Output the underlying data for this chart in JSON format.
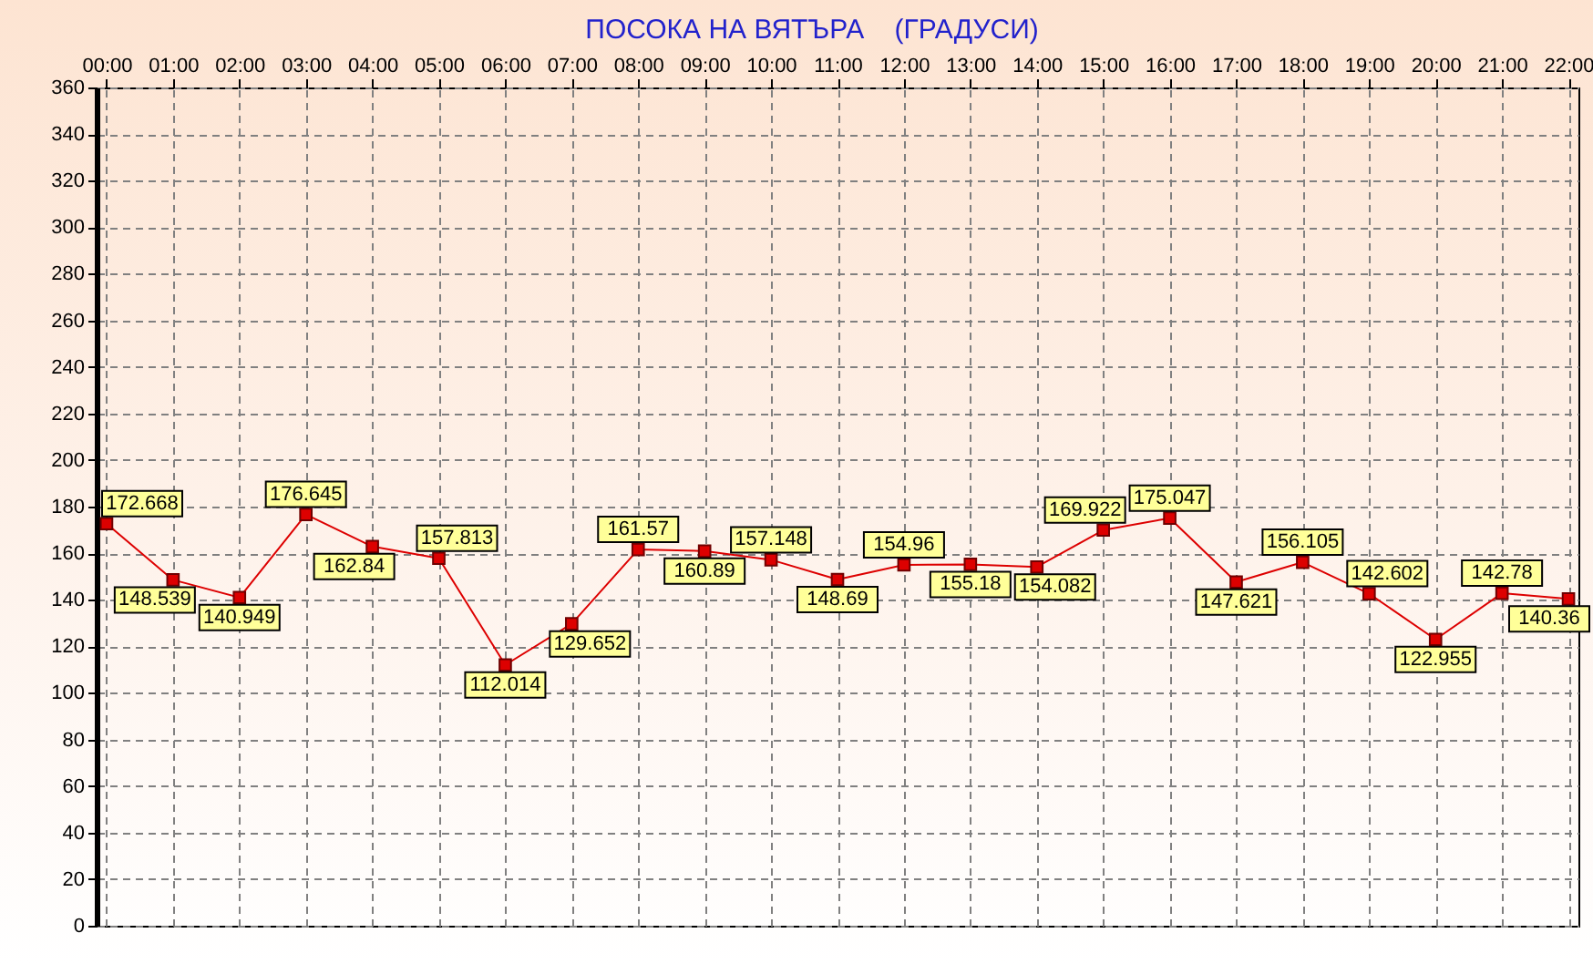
{
  "chart_data": {
    "type": "line",
    "title": "ПОСОКА НА ВЯТЪРА    (ГРАДУСИ)",
    "categories": [
      "00:00",
      "01:00",
      "02:00",
      "03:00",
      "04:00",
      "05:00",
      "06:00",
      "07:00",
      "08:00",
      "09:00",
      "10:00",
      "11:00",
      "12:00",
      "13:00",
      "14:00",
      "15:00",
      "16:00",
      "17:00",
      "18:00",
      "19:00",
      "20:00",
      "21:00",
      "22:00"
    ],
    "values": [
      172.668,
      148.539,
      140.949,
      176.645,
      162.84,
      157.813,
      112.014,
      129.652,
      161.57,
      160.89,
      157.148,
      148.69,
      154.96,
      155.18,
      154.082,
      169.922,
      175.047,
      147.621,
      156.105,
      142.602,
      122.955,
      142.78,
      140.36
    ],
    "color": "#dd0000",
    "marker": "square",
    "line_style": "solid",
    "data_labels": true,
    "grid": true,
    "ylim": [
      0,
      360
    ],
    "yticks": [
      0,
      20,
      40,
      60,
      80,
      100,
      120,
      140,
      160,
      180,
      200,
      220,
      240,
      260,
      280,
      300,
      320,
      340,
      360
    ]
  }
}
